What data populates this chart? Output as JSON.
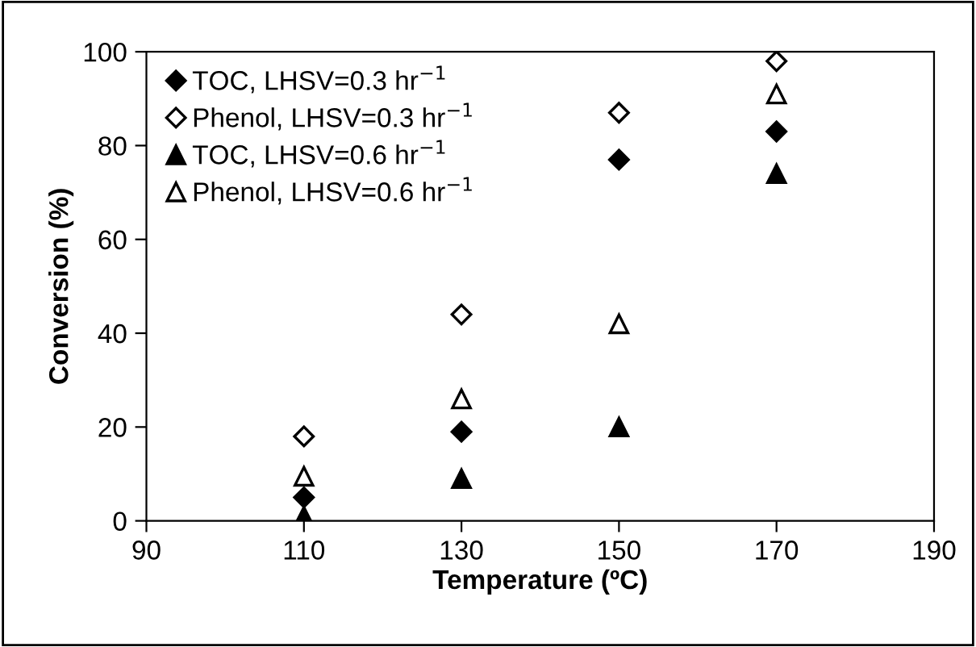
{
  "chart_data": {
    "type": "scatter",
    "xlabel": "Temperature (ºC)",
    "ylabel": "Conversion (%)",
    "x": [
      110,
      130,
      150,
      170
    ],
    "series": [
      {
        "name": "TOC, LHSV=0.3 hr$^{−1}$",
        "color": "#000000",
        "marker": "diamond",
        "values": [
          5,
          19,
          77,
          83
        ]
      },
      {
        "name": "Phenol, LHSV=0.3 hr$^{−1}$",
        "color": "#000000",
        "marker": "diamond-open",
        "values": [
          18,
          44,
          87,
          98
        ]
      },
      {
        "name": "TOC, LHSV=0.6 hr$^{−1}$",
        "color": "#000000",
        "marker": "triangle",
        "values": [
          1,
          9,
          20,
          74
        ]
      },
      {
        "name": "Phenol, LHSV=0.6 hr$^{−1}$",
        "color": "#000000",
        "marker": "triangle-open",
        "values": [
          9.5,
          26,
          42,
          91
        ]
      }
    ],
    "xlim": [
      90,
      190
    ],
    "xticks": [
      90,
      110,
      130,
      150,
      170,
      190
    ],
    "ylim": [
      0,
      100
    ],
    "yticks": [
      0,
      20,
      40,
      60,
      80,
      100
    ],
    "grid": false,
    "legend": "top left"
  }
}
